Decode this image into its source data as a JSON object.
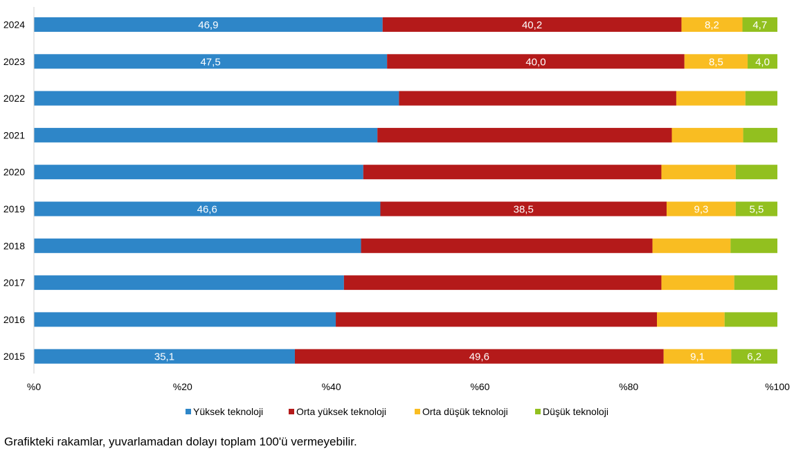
{
  "colors": {
    "series": [
      "#2e86c8",
      "#b41a1a",
      "#f9bd22",
      "#92c01f"
    ],
    "axis": "#d0d0d0"
  },
  "chart_data": {
    "type": "bar",
    "orientation": "horizontal",
    "stacked": true,
    "categories": [
      "2024",
      "2023",
      "2022",
      "2021",
      "2020",
      "2019",
      "2018",
      "2017",
      "2016",
      "2015"
    ],
    "series": [
      {
        "name": "Yüksek teknoloji",
        "values": [
          46.9,
          47.5,
          49.1,
          46.2,
          44.3,
          46.6,
          44.0,
          41.7,
          40.6,
          35.1
        ]
      },
      {
        "name": "Orta yüksek teknoloji",
        "values": [
          40.2,
          40.0,
          37.3,
          39.6,
          40.1,
          38.5,
          39.2,
          42.7,
          43.2,
          49.6
        ]
      },
      {
        "name": "Orta düşük teknoloji",
        "values": [
          8.2,
          8.5,
          9.3,
          9.6,
          10.0,
          9.3,
          10.5,
          9.8,
          9.1,
          9.1
        ]
      },
      {
        "name": "Düşük teknoloji",
        "values": [
          4.7,
          4.0,
          4.3,
          4.6,
          5.6,
          5.5,
          6.3,
          5.8,
          7.1,
          6.2
        ]
      }
    ],
    "data_labels": [
      [
        "46,9",
        "40,2",
        "8,2",
        "4,7"
      ],
      [
        "47,5",
        "40,0",
        "8,5",
        "4,0"
      ],
      null,
      null,
      null,
      [
        "46,6",
        "38,5",
        "9,3",
        "5,5"
      ],
      null,
      null,
      null,
      [
        "35,1",
        "49,6",
        "9,1",
        "6,2"
      ]
    ],
    "xlim": [
      0,
      100
    ],
    "x_ticks": [
      "%0",
      "%20",
      "%40",
      "%60",
      "%80",
      "%100"
    ],
    "legend": "bottom",
    "grid": false
  },
  "note": "Grafikteki rakamlar, yuvarlamadan dolayı toplam 100'ü vermeyebilir."
}
